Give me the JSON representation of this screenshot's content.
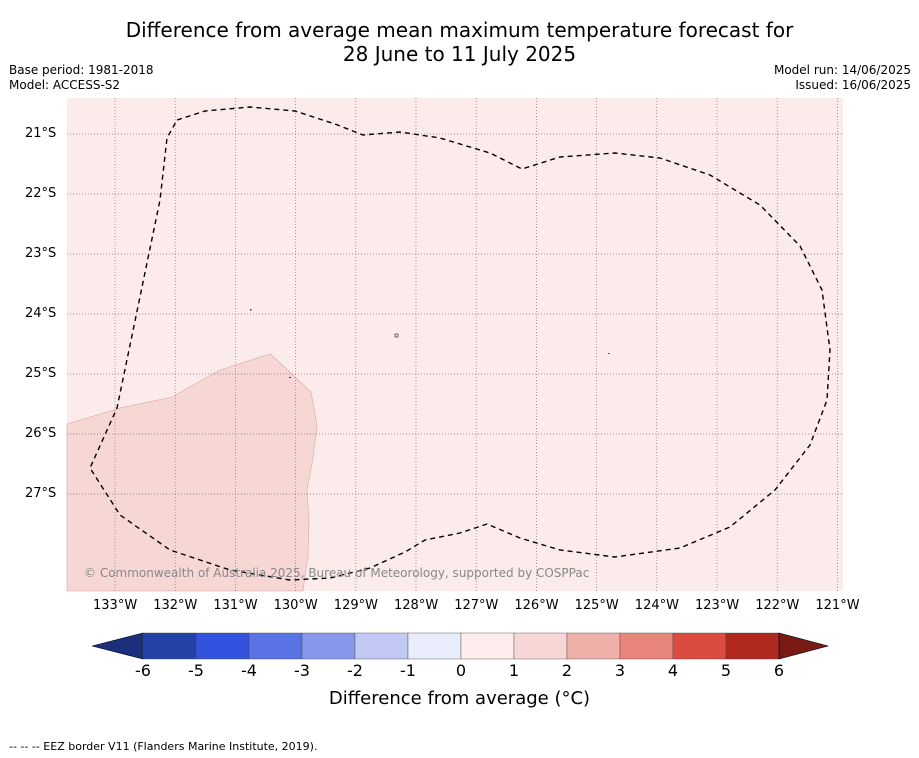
{
  "title_line1": "Difference from average mean maximum temperature forecast for",
  "title_line2": "28 June to 11 July 2025",
  "base_period": "Base period: 1981-2018",
  "model": "Model: ACCESS-S2",
  "model_run": "Model run: 14/06/2025",
  "issued": "Issued: 16/06/2025",
  "lat_labels": [
    "21°S",
    "22°S",
    "23°S",
    "24°S",
    "25°S",
    "26°S",
    "27°S"
  ],
  "lon_labels": [
    "133°W",
    "132°W",
    "131°W",
    "130°W",
    "129°W",
    "128°W",
    "127°W",
    "126°W",
    "125°W",
    "124°W",
    "123°W",
    "122°W",
    "121°W"
  ],
  "copyright": "© Commonwealth of Australia 2025, Bureau of Meteorology, supported by COSPPac",
  "colorbar": {
    "ticks": [
      "-6",
      "-5",
      "-4",
      "-3",
      "-2",
      "-1",
      "0",
      "1",
      "2",
      "3",
      "4",
      "5",
      "6"
    ],
    "colors": [
      "#2342a8",
      "#3352e0",
      "#5a73e4",
      "#8798ea",
      "#c2c9f4",
      "#e9ecfb",
      "#fdeeed",
      "#f7d7d5",
      "#efb0aa",
      "#e8867e",
      "#dc4b3f",
      "#b0281f"
    ],
    "low_extend_color": "#1c2f7a",
    "high_extend_color": "#7a1a14",
    "label": "Difference from average (°C)"
  },
  "map_colors": {
    "background": "#fbebea",
    "warm_patch": "#f6d7d4"
  },
  "footnote": "-- -- -- EEZ border V11 (Flanders Marine Institute, 2019)."
}
